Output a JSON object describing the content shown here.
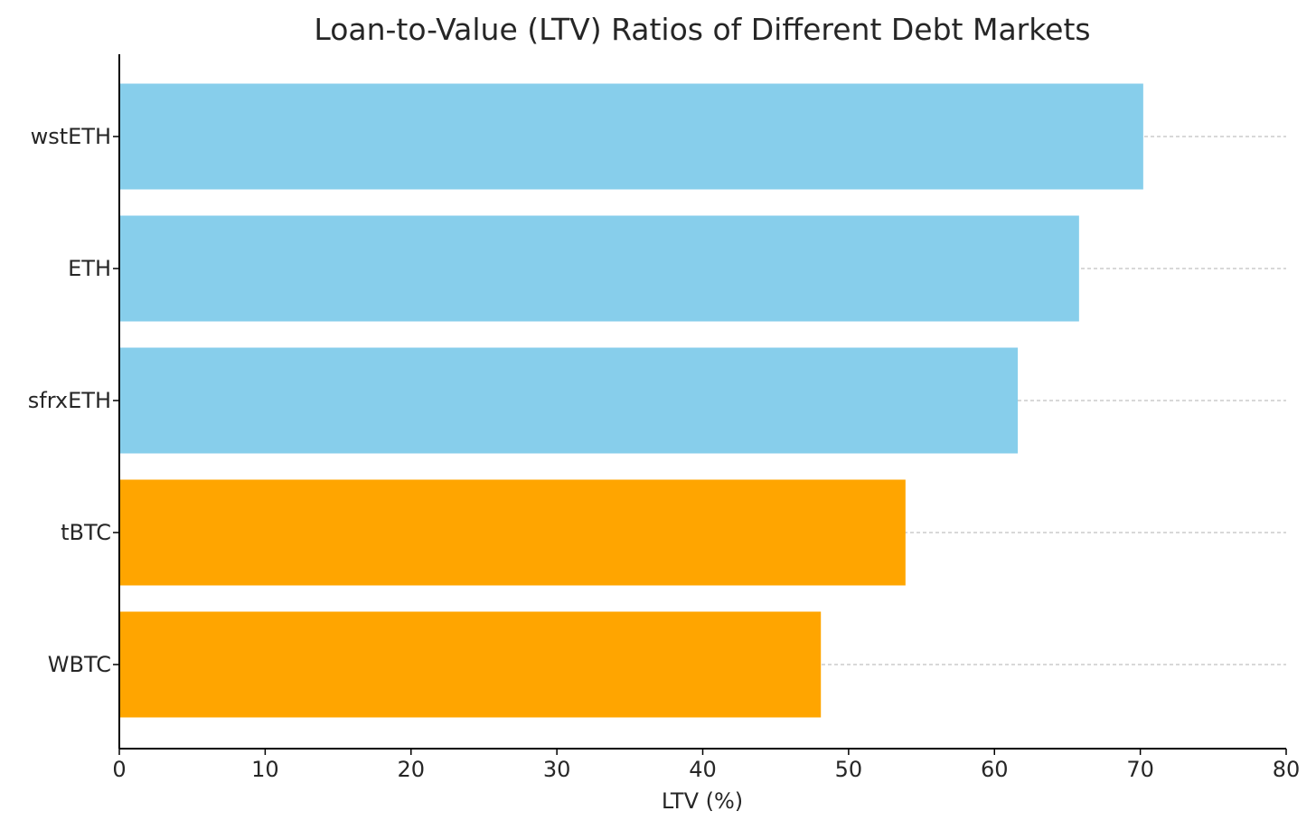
{
  "chart_data": {
    "type": "bar",
    "orientation": "horizontal",
    "title": "Loan-to-Value (LTV) Ratios of Different Debt Markets",
    "xlabel": "LTV (%)",
    "ylabel": "",
    "xlim": [
      0,
      80
    ],
    "x_ticks": [
      0,
      10,
      20,
      30,
      40,
      50,
      60,
      70,
      80
    ],
    "categories": [
      "WBTC",
      "tBTC",
      "sfrxETH",
      "ETH",
      "wstETH"
    ],
    "values": [
      48.1,
      53.9,
      61.6,
      65.8,
      70.2
    ],
    "bar_colors": [
      "#FFA500",
      "#FFA500",
      "#87CEEB",
      "#87CEEB",
      "#87CEEB"
    ],
    "grid": {
      "axis": "y",
      "style": "dashed",
      "color": "#b0b0b0"
    },
    "legend": "none"
  }
}
